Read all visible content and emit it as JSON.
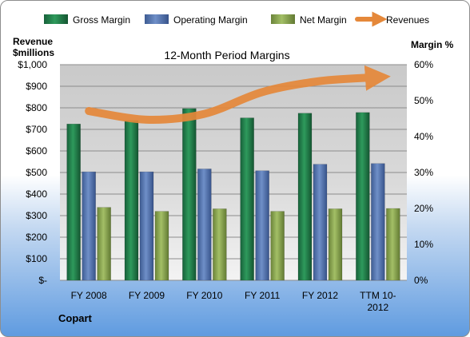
{
  "chart_data": {
    "type": "bar",
    "title": "12-Month Period Margins",
    "company": "Copart",
    "y_left_label": [
      "Revenue",
      "$millions"
    ],
    "y_right_label": "Margin %",
    "y_left_ticks": [
      "$-",
      "$100",
      "$200",
      "$300",
      "$400",
      "$500",
      "$600",
      "$700",
      "$800",
      "$900",
      "$1,000"
    ],
    "y_right_ticks": [
      "0%",
      "10%",
      "20%",
      "30%",
      "40%",
      "50%",
      "60%"
    ],
    "ylim_left": [
      0,
      1000
    ],
    "ylim_right": [
      0,
      60
    ],
    "grid": true,
    "legend_position": "top",
    "categories": [
      [
        "FY 2008"
      ],
      [
        "FY 2009"
      ],
      [
        "FY 2010"
      ],
      [
        "FY 2011"
      ],
      [
        "FY 2012"
      ],
      [
        "TTM 10-",
        "2012"
      ]
    ],
    "series": [
      {
        "name": "Gross Margin",
        "axis": "right",
        "color": "#1e7145",
        "values": [
          43.5,
          44.5,
          47.8,
          45.2,
          46.5,
          46.7
        ]
      },
      {
        "name": "Operating Margin",
        "axis": "right",
        "color": "#4f6fa8",
        "values": [
          30.2,
          30.2,
          31.0,
          30.5,
          32.3,
          32.5
        ]
      },
      {
        "name": "Net Margin",
        "axis": "right",
        "color": "#7f9b48",
        "values": [
          20.3,
          19.2,
          19.9,
          19.2,
          19.9,
          20.0
        ]
      },
      {
        "name": "Revenues",
        "axis": "left",
        "type": "line",
        "color": "#e5883a",
        "values": [
          785,
          745,
          772,
          873,
          924,
          942
        ]
      }
    ]
  }
}
